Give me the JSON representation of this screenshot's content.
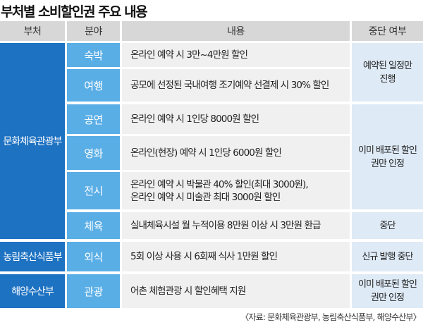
{
  "title": "부처별 소비할인권 주요 내용",
  "headers": {
    "ministry": "부처",
    "field": "분야",
    "content": "내용",
    "status": "중단 여부"
  },
  "ministries": {
    "culture": "문화체육관광부",
    "agriculture": "농림축산식품부",
    "oceans": "해양수산부"
  },
  "rows": [
    {
      "field": "숙박",
      "content": "온라인 예약 시 3만~4만원 할인"
    },
    {
      "field": "여행",
      "content": "공모에 선정된 국내여행 조기예약 선결제 시 30% 할인"
    },
    {
      "field": "공연",
      "content": "온라인 예약 시 1인당 8000원 할인"
    },
    {
      "field": "영화",
      "content": "온라인(현장) 예약 시 1인당 6000원 할인"
    },
    {
      "field": "전시",
      "content": "온라인 예약 시 박물관 40% 할인(최대 3000원),",
      "content2": "온라인 예약 시 미술관 최대 3000원 할인"
    },
    {
      "field": "체육",
      "content": "실내체육시설 월 누적이용 8만원 이상 시 3만원 환급"
    },
    {
      "field": "외식",
      "content": "5회 이상 사용 시 6회째 식사 1만원 할인"
    },
    {
      "field": "관광",
      "content": "어촌 체험관광 시 할인혜택 지원"
    }
  ],
  "statuses": {
    "lodging_travel": "예약된 일정만 진행",
    "culture": "이미 배포된 할인권만 인정",
    "sports": "중단",
    "dining": "신규 발행 중단",
    "tourism": "이미 배포된 할인권만 인정"
  },
  "source": "〈자료: 문화체육관광부, 농림축산식품부, 해양수산부〉"
}
